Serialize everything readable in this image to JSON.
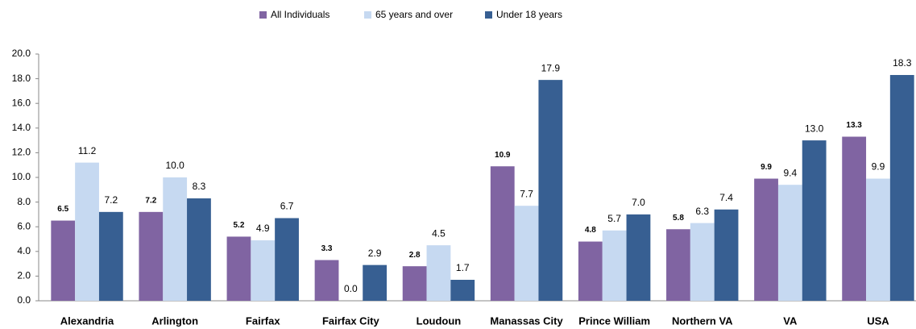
{
  "chart_data": {
    "type": "bar",
    "categories": [
      "Alexandria",
      "Arlington",
      "Fairfax",
      "Fairfax City",
      "Loudoun",
      "Manassas City",
      "Prince William",
      "Northern VA",
      "VA",
      "USA"
    ],
    "series": [
      {
        "name": "All Individuals",
        "color": "#8064a2",
        "values": [
          6.5,
          7.2,
          5.2,
          3.3,
          2.8,
          10.9,
          4.8,
          5.8,
          9.9,
          13.3
        ],
        "value_labels": [
          "6.5",
          "7.2",
          "5.2",
          "3.3",
          "2.8",
          "10.9",
          "4.8",
          "5.8",
          "9.9",
          "13.3"
        ]
      },
      {
        "name": "65 years and over",
        "color": "#c6d9f1",
        "values": [
          11.2,
          10.0,
          4.9,
          0.0,
          4.5,
          7.7,
          5.7,
          6.3,
          9.4,
          9.9
        ],
        "value_labels": [
          "11.2",
          "10.0",
          "4.9",
          "0.0",
          "4.5",
          "7.7",
          "5.7",
          "6.3",
          "9.4",
          "9.9"
        ]
      },
      {
        "name": "Under 18 years",
        "color": "#375f92",
        "values": [
          7.2,
          8.3,
          6.7,
          2.9,
          1.7,
          17.9,
          7.0,
          7.4,
          13.0,
          18.3
        ],
        "value_labels": [
          "7.2",
          "8.3",
          "6.7",
          "2.9",
          "1.7",
          "17.9",
          "7.0",
          "7.4",
          "13.0",
          "18.3"
        ]
      }
    ],
    "ylim": [
      0,
      20
    ],
    "yticks": [
      {
        "value": 0,
        "label": "0.0"
      },
      {
        "value": 2,
        "label": "2.0"
      },
      {
        "value": 4,
        "label": "4.0"
      },
      {
        "value": 6,
        "label": "6.0"
      },
      {
        "value": 8,
        "label": "8.0"
      },
      {
        "value": 10,
        "label": "10.0"
      },
      {
        "value": 12,
        "label": "12.0"
      },
      {
        "value": 14,
        "label": "14.0"
      },
      {
        "value": 16,
        "label": "16.0"
      },
      {
        "value": 18,
        "label": "18.0"
      },
      {
        "value": 20,
        "label": "20.0"
      }
    ],
    "legend": "top"
  }
}
